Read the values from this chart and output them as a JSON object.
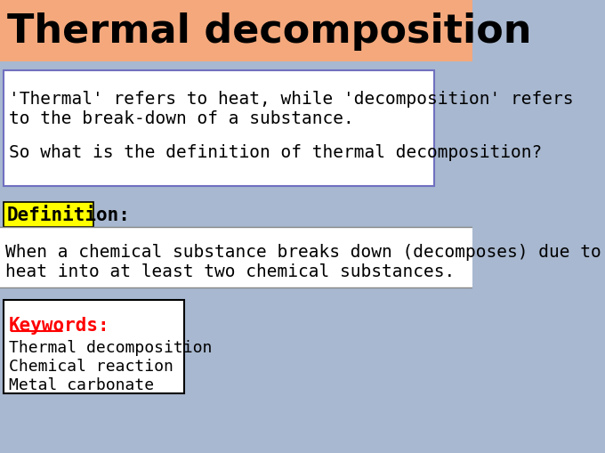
{
  "title": "Thermal decomposition",
  "title_bg": "#F4A87C",
  "slide_bg": "#A8B8D0",
  "intro_text_line1": "'Thermal' refers to heat, while 'decomposition' refers",
  "intro_text_line2": "to the break-down of a substance.",
  "intro_text_line3": "So what is the definition of thermal decomposition?",
  "intro_box_border": "#7070C0",
  "intro_box_bg": "#FFFFFF",
  "definition_label": "Definition:",
  "definition_label_bg": "#FFFF00",
  "definition_label_color": "#000000",
  "definition_text_line1": "When a chemical substance breaks down (decomposes) due to",
  "definition_text_line2": "heat into at least two chemical substances.",
  "definition_section_bg": "#FFFFFF",
  "keywords_label": "Keywords:",
  "keywords_label_color": "#FF0000",
  "keywords": [
    "Thermal decomposition",
    "Chemical reaction",
    "Metal carbonate"
  ],
  "keywords_box_bg": "#FFFFFF",
  "keywords_box_border": "#000000",
  "text_color": "#000000",
  "font_size_title": 32,
  "font_size_body": 14,
  "font_size_keywords_header": 15,
  "font_size_keywords": 13
}
